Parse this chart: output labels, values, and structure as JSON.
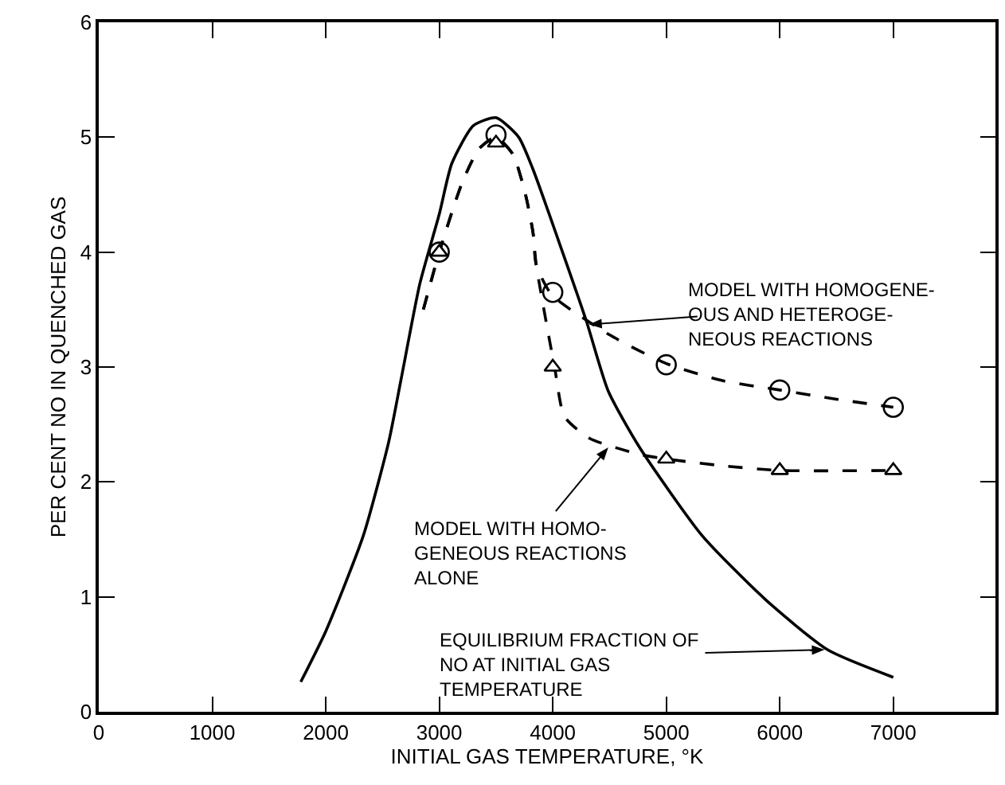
{
  "chart_data": {
    "type": "line",
    "xlabel": "INITIAL GAS TEMPERATURE, °K",
    "ylabel": "PER CENT NO IN QUENCHED GAS",
    "xlim": [
      0,
      7900
    ],
    "ylim": [
      0,
      6
    ],
    "xticks": [
      0,
      1000,
      2000,
      3000,
      4000,
      5000,
      6000,
      7000
    ],
    "yticks": [
      0,
      1,
      2,
      3,
      4,
      5,
      6
    ],
    "grid": false,
    "series": [
      {
        "type": "line",
        "color": "#000000",
        "line_style": "solid",
        "marker": "none",
        "x": [
          1780,
          2000,
          2330,
          2555,
          2665,
          2830,
          3000,
          3110,
          3300,
          3500,
          3700,
          3826,
          4047,
          4296,
          4489,
          4765,
          5318,
          5870,
          6420,
          7000
        ],
        "values": [
          0.26,
          0.7,
          1.53,
          2.35,
          2.9,
          3.73,
          4.33,
          4.77,
          5.1,
          5.17,
          5.0,
          4.72,
          4.11,
          3.4,
          2.79,
          2.3,
          1.53,
          0.98,
          0.54,
          0.3
        ]
      },
      {
        "type": "line",
        "color": "#000000",
        "line_style": "dashed",
        "marker": "none",
        "x": [
          2860,
          3000,
          3200,
          3350,
          3500,
          3650,
          3760,
          3826,
          3854,
          3990,
          4500,
          5000,
          5500,
          6000,
          6500,
          7000
        ],
        "values": [
          3.5,
          4.0,
          4.6,
          4.9,
          5.0,
          4.85,
          4.5,
          4.17,
          3.89,
          3.63,
          3.28,
          3.03,
          2.88,
          2.8,
          2.72,
          2.65
        ]
      },
      {
        "type": "line",
        "color": "#000000",
        "line_style": "dashed",
        "marker": "none",
        "x": [
          2860,
          3000,
          3200,
          3350,
          3500,
          3650,
          3760,
          3826,
          3854,
          4019,
          4102,
          4323,
          4765,
          5000,
          5500,
          6000,
          7000
        ],
        "values": [
          3.5,
          4.0,
          4.6,
          4.9,
          5.0,
          4.85,
          4.5,
          4.17,
          3.89,
          2.98,
          2.57,
          2.38,
          2.24,
          2.2,
          2.14,
          2.1,
          2.1
        ]
      },
      {
        "type": "scatter",
        "color": "#000000",
        "marker": "circle",
        "x": [
          3000,
          3500,
          4000,
          5000,
          6000,
          7000
        ],
        "values": [
          4.0,
          5.02,
          3.65,
          3.02,
          2.8,
          2.65
        ]
      },
      {
        "type": "scatter",
        "color": "#000000",
        "marker": "triangle",
        "x": [
          3000,
          3500,
          4000,
          5000,
          6000,
          7000
        ],
        "values": [
          4.0,
          4.95,
          3.0,
          2.2,
          2.1,
          2.1
        ]
      }
    ],
    "annotations": [
      {
        "text": "MODEL WITH HOMOGENE-\nOUS AND HETEROGE-\nNEOUS REACTIONS",
        "x": 4320,
        "y": 3.37
      },
      {
        "text": "MODEL WITH HOMO-\nGENEOUS REACTIONS\nALONE",
        "x": 4489,
        "y": 2.3
      },
      {
        "text": "EQUILIBRIUM FRACTION OF\nNO AT INITIAL GAS\nTEMPERATURE",
        "x": 6395,
        "y": 0.54
      }
    ]
  }
}
